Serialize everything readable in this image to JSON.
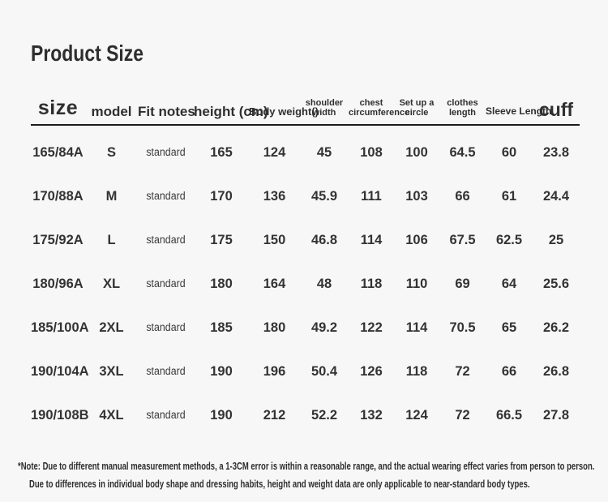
{
  "page_title": "Product Size",
  "chart_data": {
    "type": "table",
    "title": "Product Size",
    "columns": [
      "size",
      "model",
      "Fit notes",
      "height (cm)",
      "Body weight()",
      "shoulder width",
      "chest circumference",
      "Set up a circle",
      "clothes length",
      "Sleeve Length",
      "cuff"
    ],
    "rows": [
      [
        "165/84A",
        "S",
        "standard",
        "165",
        "124",
        "45",
        "108",
        "100",
        "64.5",
        "60",
        "23.8"
      ],
      [
        "170/88A",
        "M",
        "standard",
        "170",
        "136",
        "45.9",
        "111",
        "103",
        "66",
        "61",
        "24.4"
      ],
      [
        "175/92A",
        "L",
        "standard",
        "175",
        "150",
        "46.8",
        "114",
        "106",
        "67.5",
        "62.5",
        "25"
      ],
      [
        "180/96A",
        "XL",
        "standard",
        "180",
        "164",
        "48",
        "118",
        "110",
        "69",
        "64",
        "25.6"
      ],
      [
        "185/100A",
        "2XL",
        "standard",
        "185",
        "180",
        "49.2",
        "122",
        "114",
        "70.5",
        "65",
        "26.2"
      ],
      [
        "190/104A",
        "3XL",
        "standard",
        "190",
        "196",
        "50.4",
        "126",
        "118",
        "72",
        "66",
        "26.8"
      ],
      [
        "190/108B",
        "4XL",
        "standard",
        "190",
        "212",
        "52.2",
        "132",
        "124",
        "72",
        "66.5",
        "27.8"
      ]
    ]
  },
  "notes": {
    "line1": "*Note: Due to different manual measurement methods, a 1-3CM error is within a reasonable range, and the actual wearing effect varies from person to person.",
    "line2": "Due to differences in individual body shape and dressing habits, height and weight data are only applicable to near-standard body types."
  },
  "colors": {
    "background": "#f7f7f7",
    "text": "#333333",
    "header_rule": "#1c1c1c"
  }
}
